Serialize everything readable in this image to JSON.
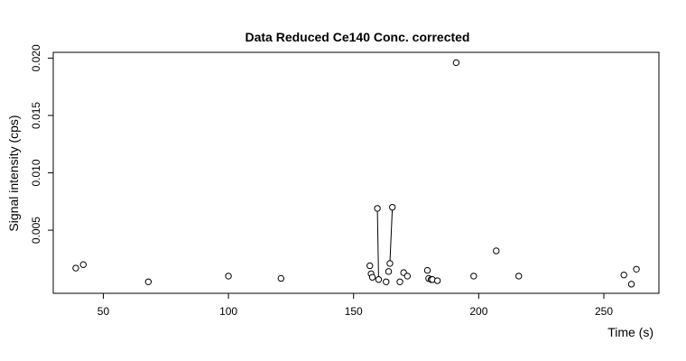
{
  "chart_data": {
    "type": "scatter",
    "title": "Data Reduced Ce140 Conc. corrected",
    "xlabel": "Time (s)",
    "ylabel": "Signal intensity (cps)",
    "xlim": [
      30,
      272
    ],
    "ylim": [
      -0.0005,
      0.0205
    ],
    "xticks": [
      50,
      100,
      150,
      200,
      250
    ],
    "xtick_labels": [
      "50",
      "100",
      "150",
      "200",
      "250"
    ],
    "yticks": [
      0.005,
      0.01,
      0.015,
      0.02
    ],
    "ytick_labels": [
      "0.005",
      "0.010",
      "0.015",
      "0.020"
    ],
    "grid": false,
    "marker": "open-circle",
    "points": [
      {
        "x": 39,
        "y": 0.0017
      },
      {
        "x": 42,
        "y": 0.002
      },
      {
        "x": 68,
        "y": 0.0005
      },
      {
        "x": 100,
        "y": 0.001
      },
      {
        "x": 121,
        "y": 0.0008
      },
      {
        "x": 156.5,
        "y": 0.0019
      },
      {
        "x": 157,
        "y": 0.0012
      },
      {
        "x": 157.5,
        "y": 0.0009
      },
      {
        "x": 160,
        "y": 0.0007
      },
      {
        "x": 159.5,
        "y": 0.0069
      },
      {
        "x": 163,
        "y": 0.0005
      },
      {
        "x": 164,
        "y": 0.0014
      },
      {
        "x": 164.5,
        "y": 0.0021
      },
      {
        "x": 165.5,
        "y": 0.007
      },
      {
        "x": 168.5,
        "y": 0.0005
      },
      {
        "x": 170,
        "y": 0.0013
      },
      {
        "x": 171.5,
        "y": 0.001
      },
      {
        "x": 179.5,
        "y": 0.0015
      },
      {
        "x": 180,
        "y": 0.0008
      },
      {
        "x": 181,
        "y": 0.0007
      },
      {
        "x": 181.5,
        "y": 0.0007
      },
      {
        "x": 183.5,
        "y": 0.0006
      },
      {
        "x": 191,
        "y": 0.0196
      },
      {
        "x": 198,
        "y": 0.001
      },
      {
        "x": 207,
        "y": 0.0032
      },
      {
        "x": 216,
        "y": 0.001
      },
      {
        "x": 258,
        "y": 0.0011
      },
      {
        "x": 261,
        "y": 0.0003
      },
      {
        "x": 263,
        "y": 0.0016
      }
    ],
    "segments": [
      {
        "x1": 159.5,
        "y1": 0.0069,
        "x2": 160,
        "y2": 0.0007
      },
      {
        "x1": 165.5,
        "y1": 0.007,
        "x2": 164.5,
        "y2": 0.0021
      }
    ]
  }
}
